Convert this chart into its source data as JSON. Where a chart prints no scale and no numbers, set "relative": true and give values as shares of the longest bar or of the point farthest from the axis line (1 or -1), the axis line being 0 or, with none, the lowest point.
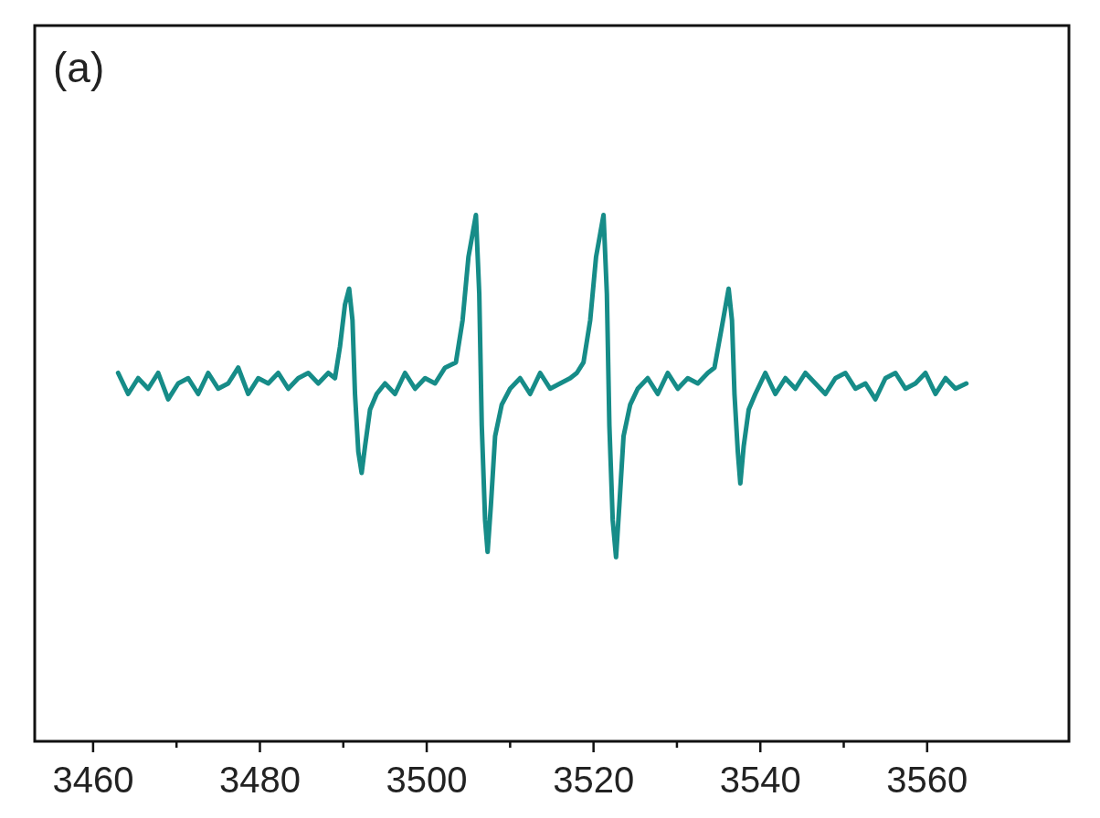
{
  "chart_data": {
    "type": "line",
    "relative": true,
    "tick_labels": "x",
    "grid": false,
    "line_style": "solid",
    "annotations": [
      "(a)"
    ],
    "xlim": [
      3453,
      3577
    ],
    "xticks": [
      3460,
      {
        "value": 3470,
        "label": null
      },
      3480,
      {
        "value": 3490,
        "label": null
      },
      3500,
      {
        "value": 3510,
        "label": null
      },
      3520,
      {
        "value": 3530,
        "label": null
      },
      3540,
      {
        "value": 3550,
        "label": null
      },
      3560
    ],
    "series": [
      {
        "color": "#168c88",
        "x": [
          3463,
          3464.2,
          3465.4,
          3466.6,
          3467.8,
          3469,
          3470.2,
          3471.4,
          3472.6,
          3473.8,
          3475,
          3476.2,
          3477.4,
          3478.6,
          3479.8,
          3481,
          3482.2,
          3483.4,
          3484.6,
          3485.8,
          3487,
          3488.2,
          3489.0,
          3489.6,
          3490.2,
          3490.7,
          3491.1,
          3491.4,
          3491.8,
          3492.2,
          3492.6,
          3493.2,
          3494,
          3495,
          3496.2,
          3497.4,
          3498.6,
          3499.8,
          3501,
          3502.2,
          3503.5,
          3504.3,
          3505,
          3505.9,
          3506.3,
          3506.6,
          3507.0,
          3507.3,
          3507.7,
          3508.2,
          3509,
          3510,
          3511.2,
          3512.4,
          3513.6,
          3514.8,
          3516,
          3517.2,
          3518.0,
          3518.8,
          3519.6,
          3520.3,
          3521.2,
          3521.6,
          3521.9,
          3522.3,
          3522.7,
          3523.1,
          3523.6,
          3524.4,
          3525.3,
          3526.5,
          3527.7,
          3528.9,
          3530.1,
          3531.3,
          3532.5,
          3533.7,
          3534.5,
          3535.3,
          3536.2,
          3536.6,
          3536.9,
          3537.3,
          3537.6,
          3538.0,
          3538.6,
          3539.4,
          3540.6,
          3541.8,
          3543,
          3544.2,
          3545.4,
          3546.6,
          3547.8,
          3549,
          3550.2,
          3551.4,
          3552.6,
          3553.8,
          3555,
          3556.2,
          3557.4,
          3558.6,
          3559.8,
          3561,
          3562.2,
          3563.4,
          3564.7
        ],
        "values": [
          0.7,
          0.66,
          0.69,
          0.67,
          0.7,
          0.65,
          0.68,
          0.69,
          0.66,
          0.7,
          0.67,
          0.68,
          0.71,
          0.66,
          0.69,
          0.68,
          0.7,
          0.67,
          0.69,
          0.7,
          0.68,
          0.7,
          0.69,
          0.75,
          0.83,
          0.86,
          0.8,
          0.66,
          0.55,
          0.51,
          0.56,
          0.63,
          0.66,
          0.68,
          0.66,
          0.7,
          0.67,
          0.69,
          0.68,
          0.71,
          0.72,
          0.8,
          0.92,
          1,
          0.85,
          0.6,
          0.42,
          0.36,
          0.45,
          0.58,
          0.64,
          0.67,
          0.69,
          0.66,
          0.7,
          0.67,
          0.68,
          0.69,
          0.7,
          0.72,
          0.8,
          0.92,
          1,
          0.85,
          0.6,
          0.42,
          0.35,
          0.45,
          0.58,
          0.64,
          0.67,
          0.69,
          0.66,
          0.7,
          0.67,
          0.69,
          0.68,
          0.7,
          0.71,
          0.78,
          0.86,
          0.8,
          0.66,
          0.55,
          0.49,
          0.56,
          0.63,
          0.66,
          0.7,
          0.66,
          0.69,
          0.67,
          0.7,
          0.68,
          0.66,
          0.69,
          0.7,
          0.67,
          0.68,
          0.65,
          0.69,
          0.7,
          0.67,
          0.68,
          0.7,
          0.66,
          0.69,
          0.67,
          0.68
        ]
      }
    ]
  }
}
